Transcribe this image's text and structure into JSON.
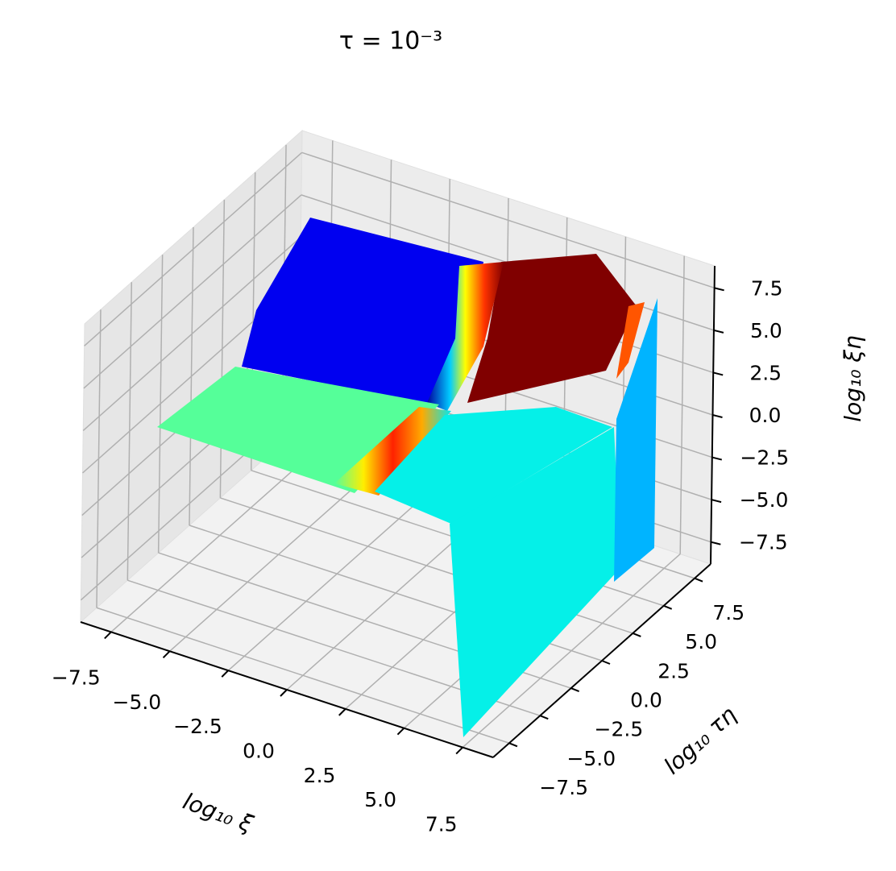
{
  "chart_data": {
    "type": "surface3d",
    "title": "τ = 10⁻³",
    "xlabel": "log₁₀ ξ",
    "ylabel": "log₁₀ τη",
    "zlabel": "log₁₀ ξη",
    "xlim": [
      -8.8,
      8.8
    ],
    "ylim": [
      -8.8,
      8.8
    ],
    "zlim": [
      -8.8,
      8.8
    ],
    "xticks": [
      {
        "value": -7.5,
        "label": "−7.5"
      },
      {
        "value": -5,
        "label": "−5.0"
      },
      {
        "value": -2.5,
        "label": "−2.5"
      },
      {
        "value": 0,
        "label": "0.0"
      },
      2.5,
      {
        "value": 5,
        "label": "5.0"
      },
      7.5
    ],
    "yticks": [
      {
        "value": -7.5,
        "label": "−7.5"
      },
      {
        "value": -5,
        "label": "−5.0"
      },
      {
        "value": -2.5,
        "label": "−2.5"
      },
      {
        "value": 0,
        "label": "0.0"
      },
      2.5,
      {
        "value": 5,
        "label": "5.0"
      },
      7.5
    ],
    "zticks": [
      {
        "value": -7.5,
        "label": "−7.5"
      },
      {
        "value": -5,
        "label": "−5.0"
      },
      {
        "value": -2.5,
        "label": "−2.5"
      },
      {
        "value": 0,
        "label": "0.0"
      },
      2.5,
      {
        "value": 5,
        "label": "5.0"
      },
      7.5
    ],
    "colormap": "jet",
    "grid": true
  }
}
